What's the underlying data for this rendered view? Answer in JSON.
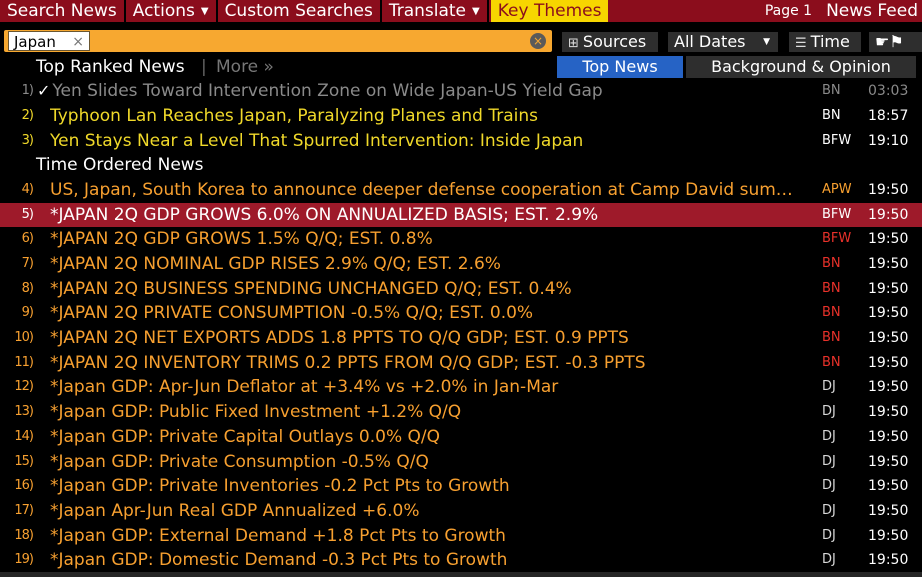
{
  "menu": {
    "items": [
      {
        "label": "Search News",
        "dropdown": false
      },
      {
        "label": "Actions",
        "dropdown": true
      },
      {
        "label": "Custom Searches",
        "dropdown": false
      },
      {
        "label": "Translate",
        "dropdown": true
      },
      {
        "label": "Key Themes",
        "dropdown": false
      }
    ],
    "page": "Page 1",
    "feed": "News Feed"
  },
  "search": {
    "chip": "Japan",
    "chip_close": "×",
    "clear": "×",
    "sources": "Sources",
    "dates": "All Dates",
    "time": "Time",
    "actions_icon": "☛⚑"
  },
  "tabs": {
    "top_ranked": "Top Ranked News",
    "separator": "|",
    "more": "More »",
    "top_news": "Top News",
    "background": "Background & Opinion"
  },
  "top_ranked": [
    {
      "num": "1)",
      "headline": "Yen Slides Toward Intervention Zone on Wide Japan-US Yield Gap",
      "source": "BN",
      "time": "03:03",
      "read": true
    },
    {
      "num": "2)",
      "headline": "Typhoon Lan Reaches Japan, Paralyzing Planes and Trains",
      "source": "BN",
      "time": "18:57",
      "read": false
    },
    {
      "num": "3)",
      "headline": "Yen Stays Near a Level That Spurred Intervention: Inside Japan",
      "source": "BFW",
      "time": "19:10",
      "read": false
    }
  ],
  "time_ordered_label": "Time Ordered News",
  "time_ordered": [
    {
      "num": "4)",
      "headline": "US, Japan, South Korea to announce deeper defense cooperation at Camp David summit",
      "source": "APW",
      "time": "19:50"
    },
    {
      "num": "5)",
      "headline": "*JAPAN 2Q GDP GROWS 6.0% ON ANNUALIZED BASIS; EST. 2.9%",
      "source": "BFW",
      "time": "19:50",
      "selected": true
    },
    {
      "num": "6)",
      "headline": "*JAPAN 2Q GDP GROWS 1.5% Q/Q; EST. 0.8%",
      "source": "BFW",
      "time": "19:50"
    },
    {
      "num": "7)",
      "headline": "*JAPAN 2Q NOMINAL GDP RISES 2.9% Q/Q; EST. 2.6%",
      "source": "BN",
      "time": "19:50"
    },
    {
      "num": "8)",
      "headline": "*JAPAN 2Q BUSINESS SPENDING UNCHANGED Q/Q; EST. 0.4%",
      "source": "BN",
      "time": "19:50"
    },
    {
      "num": "9)",
      "headline": "*JAPAN 2Q PRIVATE CONSUMPTION -0.5% Q/Q; EST. 0.0%",
      "source": "BN",
      "time": "19:50"
    },
    {
      "num": "10)",
      "headline": "*JAPAN 2Q NET EXPORTS ADDS 1.8 PPTS TO Q/Q GDP; EST. 0.9 PPTS",
      "source": "BN",
      "time": "19:50"
    },
    {
      "num": "11)",
      "headline": "*JAPAN 2Q INVENTORY TRIMS 0.2 PPTS FROM Q/Q GDP; EST. -0.3 PPTS",
      "source": "BN",
      "time": "19:50"
    },
    {
      "num": "12)",
      "headline": "*Japan GDP: Apr-Jun Deflator at +3.4% vs +2.0% in Jan-Mar",
      "source": "DJ",
      "time": "19:50"
    },
    {
      "num": "13)",
      "headline": "*Japan GDP: Public Fixed Investment +1.2% Q/Q",
      "source": "DJ",
      "time": "19:50"
    },
    {
      "num": "14)",
      "headline": "*Japan GDP: Private Capital Outlays 0.0% Q/Q",
      "source": "DJ",
      "time": "19:50"
    },
    {
      "num": "15)",
      "headline": "*Japan GDP: Private Consumption -0.5% Q/Q",
      "source": "DJ",
      "time": "19:50"
    },
    {
      "num": "16)",
      "headline": "*Japan GDP: Private Inventories -0.2 Pct Pts to Growth",
      "source": "DJ",
      "time": "19:50"
    },
    {
      "num": "17)",
      "headline": "*Japan Apr-Jun Real GDP Annualized +6.0%",
      "source": "DJ",
      "time": "19:50"
    },
    {
      "num": "18)",
      "headline": "*Japan GDP: External Demand +1.8 Pct Pts to Growth",
      "source": "DJ",
      "time": "19:50"
    },
    {
      "num": "19)",
      "headline": "*Japan GDP: Domestic Demand -0.3 Pct Pts to Growth",
      "source": "DJ",
      "time": "19:50"
    }
  ],
  "colors": {
    "menu_bg": "#8b0d1c",
    "highlight": "#f7d600",
    "search_bg": "#f7a830",
    "active_tab": "#2663c5",
    "top_headline": "#f0d92a",
    "headline": "#f7a030",
    "selected_row": "#9e1a2a",
    "source_bn": "#e8312a"
  }
}
